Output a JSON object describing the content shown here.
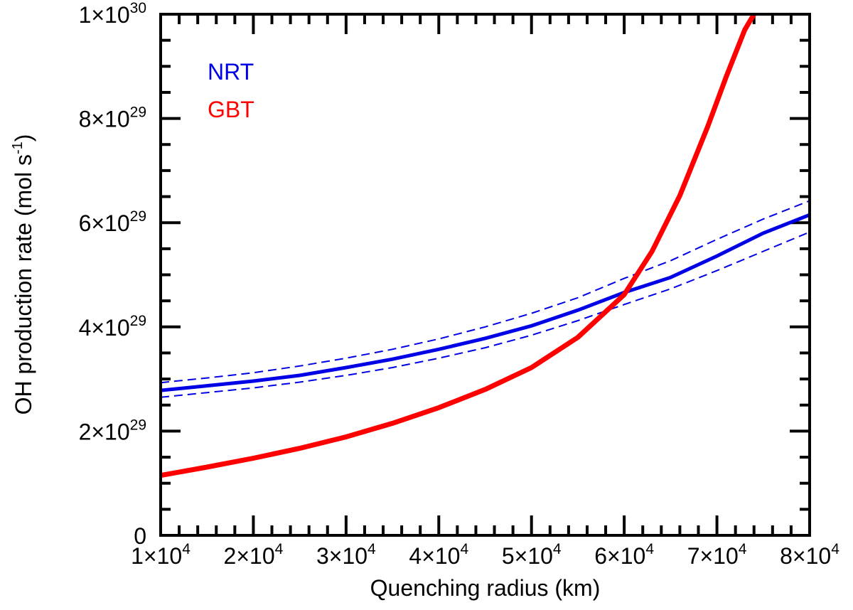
{
  "chart_data": {
    "type": "line",
    "xlabel": "Quenching radius (km)",
    "ylabel": "OH production rate (mol s",
    "ylabel_sup": "-1",
    "ylabel_close": ")",
    "xlim": [
      10000,
      80000
    ],
    "ylim": [
      0,
      1e+30
    ],
    "x_ticks": [
      {
        "value": 10000,
        "mantissa": "1",
        "exp": "4"
      },
      {
        "value": 20000,
        "mantissa": "2",
        "exp": "4"
      },
      {
        "value": 30000,
        "mantissa": "3",
        "exp": "4"
      },
      {
        "value": 40000,
        "mantissa": "4",
        "exp": "4"
      },
      {
        "value": 50000,
        "mantissa": "5",
        "exp": "4"
      },
      {
        "value": 60000,
        "mantissa": "6",
        "exp": "4"
      },
      {
        "value": 70000,
        "mantissa": "7",
        "exp": "4"
      },
      {
        "value": 80000,
        "mantissa": "8",
        "exp": "4"
      }
    ],
    "y_ticks": [
      {
        "value": 0,
        "text": "0"
      },
      {
        "value": 2e+29,
        "mantissa": "2",
        "exp": "29"
      },
      {
        "value": 4e+29,
        "mantissa": "4",
        "exp": "29"
      },
      {
        "value": 6e+29,
        "mantissa": "6",
        "exp": "29"
      },
      {
        "value": 8e+29,
        "mantissa": "8",
        "exp": "29"
      },
      {
        "value": 1e+30,
        "mantissa": "1",
        "exp": "30"
      }
    ],
    "series": [
      {
        "name": "NRT",
        "color": "#0000e6",
        "x": [
          10000,
          15000,
          20000,
          25000,
          30000,
          35000,
          40000,
          45000,
          50000,
          55000,
          60000,
          65000,
          70000,
          75000,
          80000
        ],
        "values": [
          2.78e+29,
          2.87e+29,
          2.96e+29,
          3.07e+29,
          3.22e+29,
          3.38e+29,
          3.57e+29,
          3.78e+29,
          4.02e+29,
          4.32e+29,
          4.66e+29,
          4.95e+29,
          5.36e+29,
          5.8e+29,
          6.15e+29
        ],
        "upper": [
          2.93e+29,
          3.02e+29,
          3.12e+29,
          3.25e+29,
          3.4e+29,
          3.57e+29,
          3.77e+29,
          4e+29,
          4.26e+29,
          4.56e+29,
          4.93e+29,
          5.27e+29,
          5.68e+29,
          6.07e+29,
          6.42e+29
        ],
        "lower": [
          2.65e+29,
          2.74e+29,
          2.83e+29,
          2.94e+29,
          3.07e+29,
          3.22e+29,
          3.4e+29,
          3.6e+29,
          3.84e+29,
          4.12e+29,
          4.43e+29,
          4.73e+29,
          5.08e+29,
          5.45e+29,
          5.82e+29
        ]
      },
      {
        "name": "GBT",
        "color": "#ff0000",
        "x": [
          10000,
          15000,
          20000,
          25000,
          30000,
          35000,
          40000,
          45000,
          50000,
          55000,
          60000,
          63000,
          66000,
          69000,
          71000,
          73000,
          74000
        ],
        "values": [
          1.15e+29,
          1.31e+29,
          1.48e+29,
          1.67e+29,
          1.89e+29,
          2.15e+29,
          2.45e+29,
          2.8e+29,
          3.22e+29,
          3.8e+29,
          4.62e+29,
          5.45e+29,
          6.52e+29,
          7.84e+29,
          8.8e+29,
          9.7e+29,
          1e+30
        ]
      }
    ],
    "legend": {
      "position": "top-left"
    }
  }
}
